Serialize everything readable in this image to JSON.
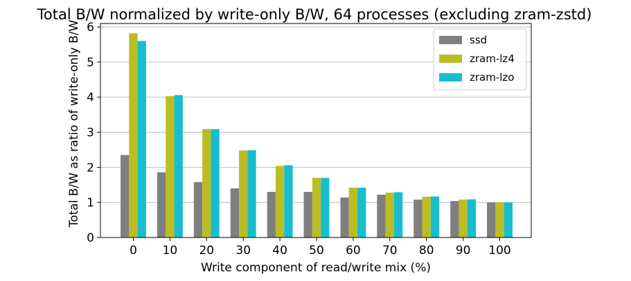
{
  "chart_data": {
    "type": "bar",
    "title": "Total B/W normalized by write-only B/W, 64 processes (excluding zram-zstd)",
    "xlabel": "Write component of read/write mix (%)",
    "ylabel": "Total B/W as ratio of write-only B/W",
    "categories": [
      "0",
      "10",
      "20",
      "30",
      "40",
      "50",
      "60",
      "70",
      "80",
      "90",
      "100"
    ],
    "ylim": [
      0,
      6.1
    ],
    "yticks": [
      "0",
      "1",
      "2",
      "3",
      "4",
      "5",
      "6"
    ],
    "grid": "y-major",
    "legend_position": "top-right",
    "series": [
      {
        "name": "ssd",
        "color": "#7f7f7f",
        "values": [
          2.35,
          1.86,
          1.58,
          1.4,
          1.3,
          1.3,
          1.14,
          1.22,
          1.08,
          1.04,
          1.0
        ]
      },
      {
        "name": "zram-lz4",
        "color": "#bcbd22",
        "values": [
          5.82,
          4.03,
          3.09,
          2.48,
          2.04,
          1.7,
          1.42,
          1.28,
          1.16,
          1.08,
          1.0
        ]
      },
      {
        "name": "zram-lzo",
        "color": "#17becf",
        "values": [
          5.6,
          4.06,
          3.09,
          2.49,
          2.06,
          1.7,
          1.42,
          1.29,
          1.17,
          1.09,
          1.0
        ]
      }
    ]
  }
}
